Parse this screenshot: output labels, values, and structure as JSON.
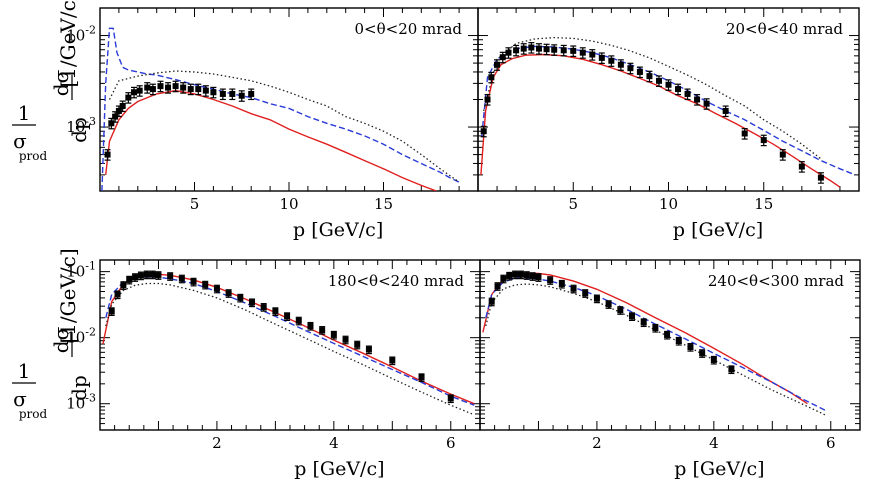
{
  "figure": {
    "y_axis_label": {
      "numerator": "1",
      "denominator_main": "σ",
      "denominator_sub": "prod",
      "frac_numerator": "dσ",
      "frac_denominator": "dp",
      "unit": "[1/GeV/c]"
    }
  },
  "chart_data": [
    {
      "type": "line",
      "label": "0<θ<20 mrad",
      "xlabel": "p [GeV/c]",
      "ylabel": "",
      "xlim": [
        0,
        20
      ],
      "ylim": [
        0.0002,
        0.02
      ],
      "yscale": "log",
      "x_ticks": [
        5,
        10,
        15
      ],
      "y_ticks": [
        {
          "value": 0.001,
          "base": "10",
          "exp": "-3"
        },
        {
          "value": 0.01,
          "base": "10",
          "exp": "-2"
        }
      ],
      "series": [
        {
          "style": "dashed",
          "color": "#2a3bd6",
          "x": [
            0.1,
            0.3,
            0.5,
            0.7,
            0.9,
            1.2,
            1.5,
            2,
            2.5,
            3,
            4,
            5,
            6,
            7,
            8,
            9,
            10,
            11,
            12,
            13,
            14,
            15,
            16,
            17,
            18,
            18.5,
            19
          ],
          "y": [
            0.0002,
            0.003,
            0.012,
            0.012,
            0.0065,
            0.0045,
            0.0042,
            0.004,
            0.0038,
            0.0037,
            0.0033,
            0.0029,
            0.0026,
            0.0023,
            0.0021,
            0.0018,
            0.0016,
            0.0013,
            0.0011,
            0.00095,
            0.0008,
            0.00065,
            0.0005,
            0.0004,
            0.00032,
            0.00028,
            0.00025
          ]
        },
        {
          "style": "dotted",
          "color": "#222222",
          "x": [
            0.5,
            1,
            2,
            3,
            4,
            5,
            6,
            7,
            8,
            9,
            10,
            11,
            12,
            13,
            14,
            15,
            16,
            17,
            18,
            19
          ],
          "y": [
            0.002,
            0.0032,
            0.0036,
            0.0039,
            0.0041,
            0.004,
            0.0038,
            0.0035,
            0.0032,
            0.0028,
            0.0024,
            0.002,
            0.0017,
            0.0013,
            0.0011,
            0.0009,
            0.0007,
            0.0005,
            0.00035,
            0.00025
          ]
        },
        {
          "style": "solid",
          "color": "#e02020",
          "x": [
            0.3,
            0.5,
            1,
            1.5,
            2,
            2.5,
            3,
            3.5,
            4,
            5,
            6,
            7,
            8,
            9,
            10,
            11,
            12,
            13,
            14,
            15,
            16,
            17,
            17.8
          ],
          "y": [
            0.0003,
            0.0007,
            0.0012,
            0.0016,
            0.0019,
            0.0021,
            0.0023,
            0.0024,
            0.0025,
            0.0023,
            0.002,
            0.0017,
            0.0014,
            0.0012,
            0.00095,
            0.00078,
            0.00065,
            0.00053,
            0.00043,
            0.00035,
            0.00028,
            0.00023,
            0.0002
          ]
        },
        {
          "style": "markers",
          "color": "#000000",
          "x": [
            0.4,
            0.6,
            0.8,
            1.0,
            1.2,
            1.5,
            1.8,
            2.1,
            2.5,
            2.8,
            3.2,
            3.6,
            4.0,
            4.4,
            4.8,
            5.2,
            5.6,
            6.0,
            6.5,
            7.0,
            7.5,
            8.0
          ],
          "y": [
            0.0005,
            0.0011,
            0.0013,
            0.0015,
            0.0017,
            0.0021,
            0.0024,
            0.0025,
            0.0027,
            0.0026,
            0.0028,
            0.0027,
            0.0028,
            0.0027,
            0.0026,
            0.0026,
            0.0025,
            0.0024,
            0.0023,
            0.0023,
            0.0022,
            0.0023
          ]
        }
      ]
    },
    {
      "type": "line",
      "label": "20<θ<40 mrad",
      "xlabel": "p [GeV/c]",
      "ylabel": "",
      "xlim": [
        0,
        20
      ],
      "ylim": [
        0.0002,
        0.02
      ],
      "yscale": "log",
      "x_ticks": [
        5,
        10,
        15
      ],
      "y_ticks": [],
      "series": [
        {
          "style": "dashed",
          "color": "#2a3bd6",
          "x": [
            0.2,
            0.5,
            1,
            1.5,
            2,
            3,
            4,
            5,
            6,
            7,
            8,
            9,
            10,
            11,
            12,
            13,
            14,
            15,
            16,
            17,
            18,
            19,
            19.8
          ],
          "y": [
            0.0008,
            0.0035,
            0.0055,
            0.0065,
            0.0072,
            0.0076,
            0.0075,
            0.0071,
            0.0065,
            0.0057,
            0.0048,
            0.004,
            0.0032,
            0.0025,
            0.0019,
            0.0015,
            0.0012,
            0.00092,
            0.0007,
            0.00055,
            0.00043,
            0.00035,
            0.0003
          ]
        },
        {
          "style": "dotted",
          "color": "#222222",
          "x": [
            0.3,
            1,
            2,
            3,
            4,
            5,
            6,
            7,
            8,
            9,
            10,
            11,
            12,
            13,
            14,
            15,
            16,
            17,
            18
          ],
          "y": [
            0.0015,
            0.0055,
            0.0082,
            0.0092,
            0.0095,
            0.0093,
            0.0087,
            0.0078,
            0.0068,
            0.0057,
            0.0046,
            0.0037,
            0.0029,
            0.0022,
            0.0017,
            0.0012,
            0.0009,
            0.00065,
            0.00045
          ]
        },
        {
          "style": "solid",
          "color": "#e02020",
          "x": [
            0.15,
            0.4,
            0.8,
            1.2,
            1.8,
            2.5,
            3.5,
            4.5,
            5.5,
            6.5,
            7.5,
            8.5,
            9.5,
            10.5,
            11.5,
            12.5,
            13.5,
            14.5,
            15.5,
            16.5,
            17.5,
            18.5,
            19
          ],
          "y": [
            0.0003,
            0.0015,
            0.0035,
            0.0048,
            0.0056,
            0.0061,
            0.0062,
            0.006,
            0.0055,
            0.0048,
            0.0041,
            0.0034,
            0.0028,
            0.0022,
            0.0018,
            0.0014,
            0.0011,
            0.00085,
            0.00065,
            0.00048,
            0.00035,
            0.00026,
            0.00022
          ]
        },
        {
          "style": "markers",
          "color": "#000000",
          "x": [
            0.3,
            0.5,
            0.7,
            1.0,
            1.3,
            1.6,
            2.0,
            2.4,
            2.8,
            3.2,
            3.6,
            4.0,
            4.5,
            5.0,
            5.5,
            6.0,
            6.5,
            7.0,
            7.5,
            8.0,
            8.5,
            9.0,
            9.5,
            10.0,
            10.5,
            11.0,
            11.5,
            12.0,
            13.0,
            14.0,
            15.0,
            16.0,
            17.0,
            18.0
          ],
          "y": [
            0.0009,
            0.002,
            0.0035,
            0.0048,
            0.0058,
            0.0065,
            0.0069,
            0.0072,
            0.0074,
            0.0072,
            0.0071,
            0.007,
            0.0069,
            0.0068,
            0.0065,
            0.0062,
            0.0057,
            0.0053,
            0.0048,
            0.0044,
            0.004,
            0.0036,
            0.0032,
            0.0029,
            0.0026,
            0.0023,
            0.002,
            0.0018,
            0.0015,
            0.00085,
            0.00072,
            0.0005,
            0.00037,
            0.00028
          ]
        }
      ]
    },
    {
      "type": "line",
      "label": "180<θ<240 mrad",
      "xlabel": "p [GeV/c]",
      "ylabel": "",
      "xlim": [
        0,
        6.5
      ],
      "ylim": [
        0.0004,
        0.15
      ],
      "yscale": "log",
      "x_ticks": [
        2,
        4,
        6
      ],
      "y_ticks": [
        {
          "value": 0.001,
          "base": "10",
          "exp": "-3"
        },
        {
          "value": 0.01,
          "base": "10",
          "exp": "-2"
        },
        {
          "value": 0.1,
          "base": "10",
          "exp": "-1"
        }
      ],
      "series": [
        {
          "style": "solid",
          "color": "#e02020",
          "x": [
            0.05,
            0.2,
            0.4,
            0.6,
            0.8,
            1.0,
            1.2,
            1.6,
            2.0,
            2.5,
            3.0,
            3.5,
            4.0,
            4.5,
            5.0,
            5.5,
            6.0,
            6.4
          ],
          "y": [
            0.008,
            0.035,
            0.065,
            0.083,
            0.09,
            0.091,
            0.088,
            0.075,
            0.058,
            0.038,
            0.024,
            0.015,
            0.0092,
            0.0058,
            0.0036,
            0.0022,
            0.0014,
            0.001
          ]
        },
        {
          "style": "dashed",
          "color": "#2a3bd6",
          "x": [
            0.1,
            0.2,
            0.4,
            0.6,
            0.8,
            1.0,
            1.2,
            1.6,
            2.0,
            2.5,
            3.0,
            3.5,
            4.0,
            4.5,
            5.0,
            5.5,
            6.0,
            6.4
          ],
          "y": [
            0.02,
            0.045,
            0.07,
            0.08,
            0.083,
            0.082,
            0.078,
            0.066,
            0.05,
            0.033,
            0.021,
            0.013,
            0.0082,
            0.0052,
            0.0033,
            0.0021,
            0.0013,
            0.00095
          ]
        },
        {
          "style": "dotted",
          "color": "#222222",
          "x": [
            0.1,
            0.2,
            0.4,
            0.6,
            0.8,
            1.0,
            1.2,
            1.6,
            2.0,
            2.5,
            3.0,
            3.5,
            4.0,
            4.5,
            5.0,
            5.5,
            6.0,
            6.4
          ],
          "y": [
            0.015,
            0.032,
            0.052,
            0.062,
            0.066,
            0.066,
            0.063,
            0.052,
            0.04,
            0.026,
            0.016,
            0.01,
            0.0062,
            0.0039,
            0.0024,
            0.0015,
            0.00095,
            0.00068
          ]
        },
        {
          "style": "markers",
          "color": "#000000",
          "x": [
            0.2,
            0.3,
            0.4,
            0.5,
            0.6,
            0.7,
            0.8,
            0.9,
            1.0,
            1.2,
            1.4,
            1.6,
            1.8,
            2.0,
            2.2,
            2.4,
            2.6,
            2.8,
            3.0,
            3.2,
            3.4,
            3.6,
            3.8,
            4.0,
            4.2,
            4.4,
            4.6,
            5.0,
            5.5,
            6.0
          ],
          "y": [
            0.025,
            0.045,
            0.062,
            0.075,
            0.082,
            0.087,
            0.09,
            0.09,
            0.088,
            0.085,
            0.078,
            0.07,
            0.063,
            0.055,
            0.047,
            0.04,
            0.034,
            0.029,
            0.025,
            0.021,
            0.018,
            0.015,
            0.013,
            0.011,
            0.0093,
            0.0078,
            0.0066,
            0.0045,
            0.0025,
            0.0012
          ]
        }
      ]
    },
    {
      "type": "line",
      "label": "240<θ<300 mrad",
      "xlabel": "p [GeV/c]",
      "ylabel": "",
      "xlim": [
        0,
        6.5
      ],
      "ylim": [
        0.0004,
        0.15
      ],
      "yscale": "log",
      "x_ticks": [
        2,
        4,
        6
      ],
      "y_ticks": [],
      "series": [
        {
          "style": "solid",
          "color": "#e02020",
          "x": [
            0.05,
            0.2,
            0.4,
            0.6,
            0.8,
            1.0,
            1.2,
            1.6,
            2.0,
            2.5,
            3.0,
            3.5,
            4.0,
            4.5,
            5.0,
            5.3,
            5.6
          ],
          "y": [
            0.012,
            0.045,
            0.078,
            0.092,
            0.095,
            0.094,
            0.089,
            0.072,
            0.054,
            0.034,
            0.02,
            0.012,
            0.0069,
            0.0039,
            0.0021,
            0.0015,
            0.001
          ]
        },
        {
          "style": "dashed",
          "color": "#2a3bd6",
          "x": [
            0.1,
            0.2,
            0.4,
            0.6,
            0.8,
            1.0,
            1.2,
            1.6,
            2.0,
            2.5,
            3.0,
            3.5,
            4.0,
            4.5,
            5.0,
            5.5,
            5.9
          ],
          "y": [
            0.02,
            0.045,
            0.07,
            0.079,
            0.08,
            0.077,
            0.072,
            0.058,
            0.043,
            0.027,
            0.016,
            0.0097,
            0.0058,
            0.0035,
            0.0021,
            0.0012,
            0.0008
          ]
        },
        {
          "style": "dotted",
          "color": "#222222",
          "x": [
            0.1,
            0.2,
            0.4,
            0.6,
            0.8,
            1.0,
            1.2,
            1.6,
            2.0,
            2.5,
            3.0,
            3.5,
            4.0,
            4.5,
            5.0,
            5.5,
            5.9
          ],
          "y": [
            0.015,
            0.034,
            0.055,
            0.063,
            0.065,
            0.063,
            0.059,
            0.047,
            0.035,
            0.022,
            0.013,
            0.0078,
            0.0046,
            0.0027,
            0.0016,
            0.001,
            0.00068
          ]
        },
        {
          "style": "markers",
          "color": "#000000",
          "x": [
            0.2,
            0.3,
            0.4,
            0.5,
            0.6,
            0.7,
            0.8,
            0.9,
            1.0,
            1.2,
            1.4,
            1.6,
            1.8,
            2.0,
            2.2,
            2.4,
            2.6,
            2.8,
            3.0,
            3.2,
            3.4,
            3.6,
            3.8,
            4.0,
            4.3
          ],
          "y": [
            0.035,
            0.06,
            0.078,
            0.086,
            0.09,
            0.09,
            0.088,
            0.085,
            0.082,
            0.074,
            0.065,
            0.055,
            0.047,
            0.039,
            0.032,
            0.026,
            0.021,
            0.017,
            0.014,
            0.011,
            0.0089,
            0.0072,
            0.0058,
            0.0046,
            0.0033
          ]
        }
      ]
    }
  ]
}
